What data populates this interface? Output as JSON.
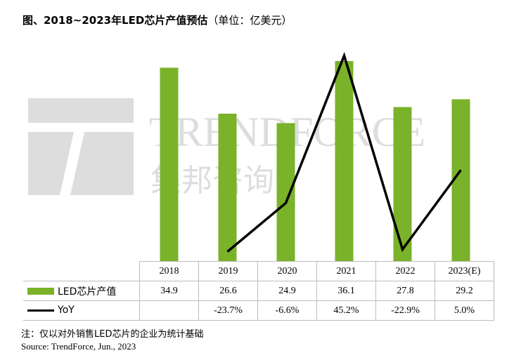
{
  "title": "图、2018~2023年LED芯片产值预估",
  "unit": "（单位：亿美元）",
  "watermark": {
    "brand": "TRENDFORCE",
    "brand_cn": "集邦咨询"
  },
  "chart_data": {
    "type": "bar",
    "categories": [
      "2018",
      "2019",
      "2020",
      "2021",
      "2022",
      "2023(E)"
    ],
    "series": [
      {
        "name": "LED芯片产值",
        "type": "bar",
        "color": "#7ab22a",
        "values": [
          34.9,
          26.6,
          24.9,
          36.1,
          27.8,
          29.2
        ],
        "labels": [
          "34.9",
          "26.6",
          "24.9",
          "36.1",
          "27.8",
          "29.2"
        ]
      },
      {
        "name": "YoY",
        "type": "line",
        "color": "#000000",
        "values": [
          null,
          -23.7,
          -6.6,
          45.2,
          -22.9,
          5.0
        ],
        "labels": [
          "",
          "-23.7%",
          "-6.6%",
          "45.2%",
          "-22.9%",
          "5.0%"
        ]
      }
    ],
    "ylim_bar": [
      0,
      38
    ],
    "ylim_line": [
      -27,
      47
    ],
    "grid": false,
    "legend": "table-left"
  },
  "note": "注：仅以对外销售LED芯片的企业为统计基础",
  "source": "Source: TrendForce, Jun., 2023"
}
